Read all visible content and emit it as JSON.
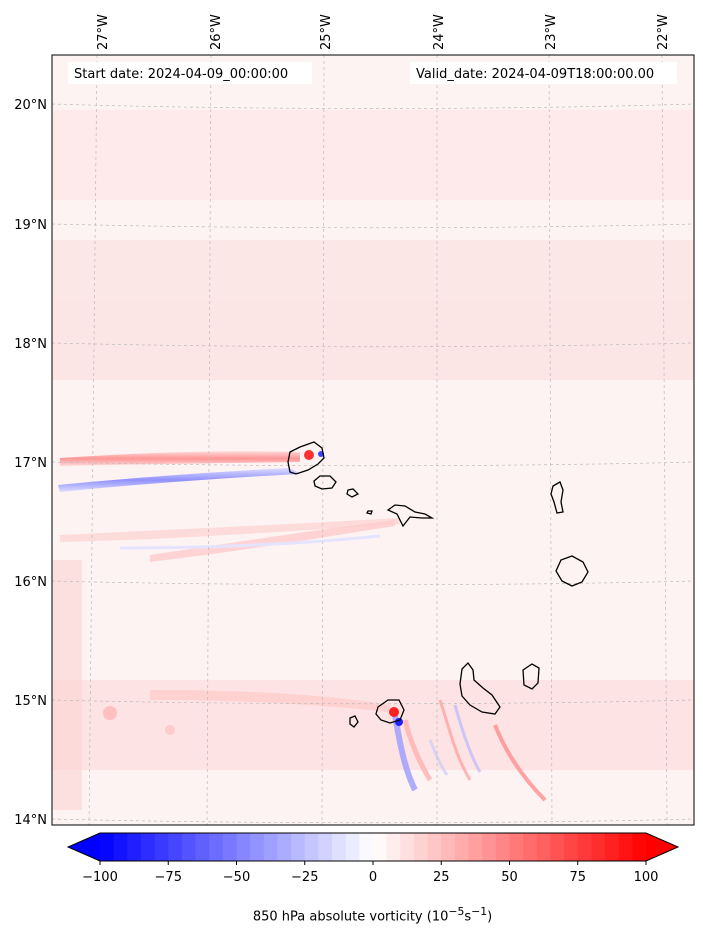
{
  "map": {
    "title_left": "Start date: 2024-04-09_00:00:00",
    "title_right": "Valid_date: 2024-04-09T18:00:00.00",
    "lon_ticks": [
      "27°W",
      "26°W",
      "25°W",
      "24°W",
      "23°W",
      "22°W"
    ],
    "lat_ticks": [
      "20°N",
      "19°N",
      "18°N",
      "17°N",
      "16°N",
      "15°N",
      "14°N"
    ],
    "lon_values": [
      -27,
      -26,
      -25,
      -24,
      -23,
      -22
    ],
    "lat_values": [
      20,
      19,
      18,
      17,
      16,
      15,
      14
    ],
    "lon_range": [
      -27.33,
      -21.65
    ],
    "lat_range": [
      13.95,
      20.42
    ],
    "field": "850 hPa absolute vorticity",
    "colormap": "bwr",
    "colors": {
      "negative": "#0000ff",
      "neutral": "#ffffff",
      "positive": "#ff0000",
      "coast": "#000000"
    }
  },
  "colorbar": {
    "label_text": "850 hPa absolute vorticity (10",
    "label_exp1": "−5",
    "label_mid": "s",
    "label_exp2": "−1",
    "label_close": ")",
    "range": [
      -100,
      100
    ],
    "ticks": [
      "−100",
      "−75",
      "−50",
      "−25",
      "0",
      "25",
      "50",
      "75",
      "100"
    ],
    "tick_values": [
      -100,
      -75,
      -50,
      -25,
      0,
      25,
      50,
      75,
      100
    ],
    "levels": 40
  }
}
